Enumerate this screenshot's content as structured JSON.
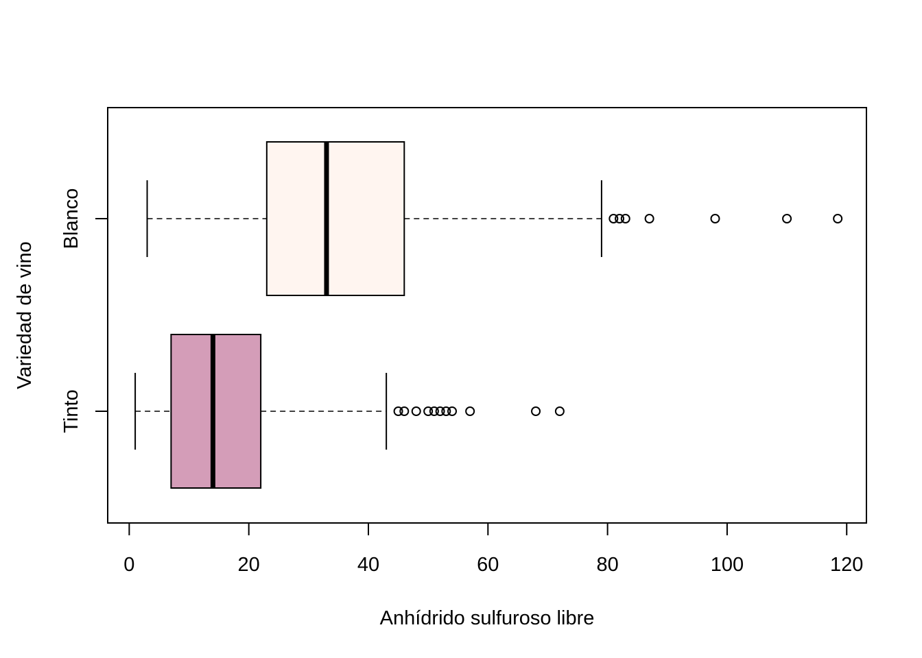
{
  "chart_data": {
    "type": "boxplot",
    "orientation": "horizontal",
    "xlabel": "Anhídrido sulfuroso libre",
    "ylabel": "Variedad de vino",
    "xlim": [
      -3.6,
      123.3
    ],
    "xticks": [
      0,
      20,
      40,
      60,
      80,
      100,
      120
    ],
    "xtick_labels": [
      "0",
      "20",
      "40",
      "60",
      "80",
      "100",
      "120"
    ],
    "grid": false,
    "legend": "none",
    "groups": [
      {
        "name": "Blanco",
        "color": "#FFF5F0",
        "whisker_low": 3,
        "q1": 23,
        "median": 33,
        "q3": 46,
        "whisker_high": 79,
        "outliers": [
          81,
          82,
          83,
          87,
          98,
          110,
          118.5
        ]
      },
      {
        "name": "Tinto",
        "color": "#D49DB8",
        "whisker_low": 1,
        "q1": 7,
        "median": 14,
        "q3": 22,
        "whisker_high": 43,
        "outliers": [
          45,
          46,
          48,
          50,
          51,
          52,
          53,
          54,
          57,
          68,
          72
        ]
      }
    ]
  }
}
